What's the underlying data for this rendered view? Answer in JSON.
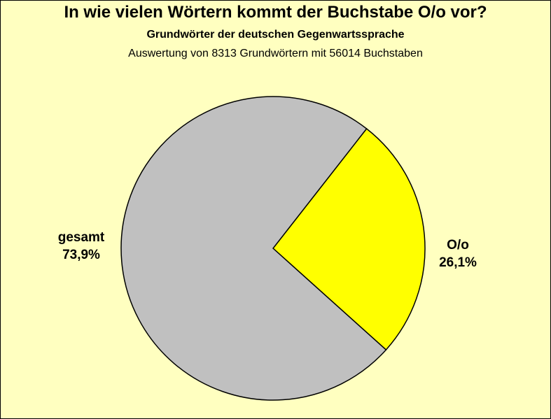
{
  "header": {
    "title": "In wie vielen Wörtern kommt der Buchstabe O/o vor?",
    "subtitle": "Grundwörter der deutschen Gegenwartssprache",
    "note": "Auswertung von 8313 Grundwörtern mit 56014 Buchstaben"
  },
  "colors": {
    "background": "#ffffc0",
    "gesamt": "#c0c0c0",
    "o": "#ffff00",
    "outline": "#000000"
  },
  "chart_data": {
    "type": "pie",
    "title": "In wie vielen Wörtern kommt der Buchstabe O/o vor?",
    "subtitle": "Grundwörter der deutschen Gegenwartssprache",
    "slices": [
      {
        "name": "O/o",
        "value": 26.1,
        "label": "26,1%",
        "color": "#ffff00"
      },
      {
        "name": "gesamt",
        "value": 73.9,
        "label": "73,9%",
        "color": "#c0c0c0"
      }
    ]
  }
}
